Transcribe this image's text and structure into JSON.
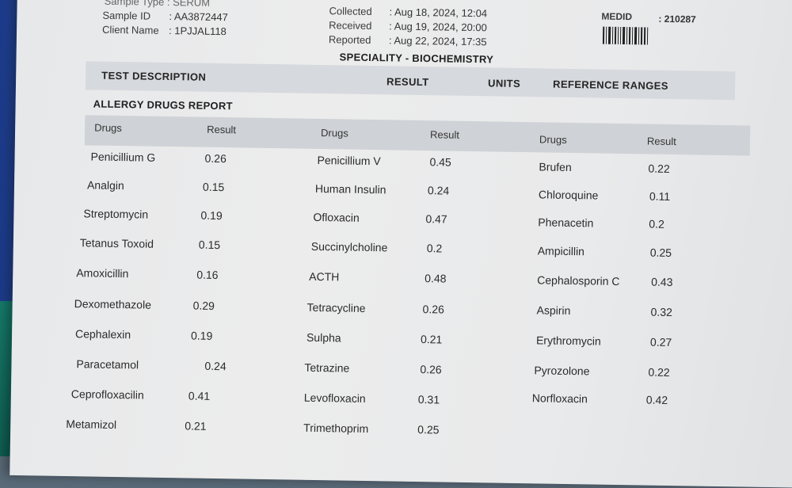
{
  "header": {
    "sample_type_partial": "Sample Type : SERUM",
    "sample_id_label": "Sample ID",
    "sample_id_value": ": AA3872447",
    "client_name_label": "Client Name",
    "client_name_value": ": 1PJJAL118",
    "collected_label": "Collected",
    "collected_value": ": Aug 18, 2024, 12:04",
    "received_label": "Received",
    "received_value": ": Aug 19, 2024, 20:00",
    "reported_label": "Reported",
    "reported_value": ": Aug 22, 2024, 17:35",
    "medid_label": "MEDID",
    "medid_value": ": 210287"
  },
  "speciality": "SPECIALITY - BIOCHEMISTRY",
  "columns": {
    "test_description": "TEST DESCRIPTION",
    "result": "RESULT",
    "units": "UNITS",
    "reference_ranges": "REFERENCE RANGES"
  },
  "report_title": "ALLERGY DRUGS REPORT",
  "table": {
    "head_drugs": "Drugs",
    "head_result": "Result",
    "col1": [
      {
        "drug": "Penicillium G",
        "result": "0.26"
      },
      {
        "drug": "Analgin",
        "result": "0.15"
      },
      {
        "drug": "Streptomycin",
        "result": "0.19"
      },
      {
        "drug": "Tetanus Toxoid",
        "result": "0.15"
      },
      {
        "drug": "Amoxicillin",
        "result": "0.16"
      },
      {
        "drug": "Dexomethazole",
        "result": "0.29"
      },
      {
        "drug": "Cephalexin",
        "result": "0.19"
      },
      {
        "drug": "Paracetamol",
        "result": "0.24"
      },
      {
        "drug": "Ceprofloxacilin",
        "result": "0.41"
      },
      {
        "drug": "Metamizol",
        "result": "0.21"
      }
    ],
    "col2": [
      {
        "drug": "Penicillium V",
        "result": "0.45"
      },
      {
        "drug": "Human Insulin",
        "result": "0.24"
      },
      {
        "drug": "Ofloxacin",
        "result": "0.47"
      },
      {
        "drug": "Succinylcholine",
        "result": "0.2"
      },
      {
        "drug": "ACTH",
        "result": "0.48"
      },
      {
        "drug": "Tetracycline",
        "result": "0.26"
      },
      {
        "drug": "Sulpha",
        "result": "0.21"
      },
      {
        "drug": "Tetrazine",
        "result": "0.26"
      },
      {
        "drug": "Levofloxacin",
        "result": "0.31"
      },
      {
        "drug": "Trimethoprim",
        "result": "0.25"
      }
    ],
    "col3": [
      {
        "drug": "Brufen",
        "result": "0.22"
      },
      {
        "drug": "Chloroquine",
        "result": "0.11"
      },
      {
        "drug": "Phenacetin",
        "result": "0.2"
      },
      {
        "drug": "Ampicillin",
        "result": "0.25"
      },
      {
        "drug": "Cephalosporin C",
        "result": "0.43"
      },
      {
        "drug": "Aspirin",
        "result": "0.32"
      },
      {
        "drug": "Erythromycin",
        "result": "0.27"
      },
      {
        "drug": "Pyrozolone",
        "result": "0.22"
      },
      {
        "drug": "Norfloxacin",
        "result": "0.42"
      }
    ]
  }
}
